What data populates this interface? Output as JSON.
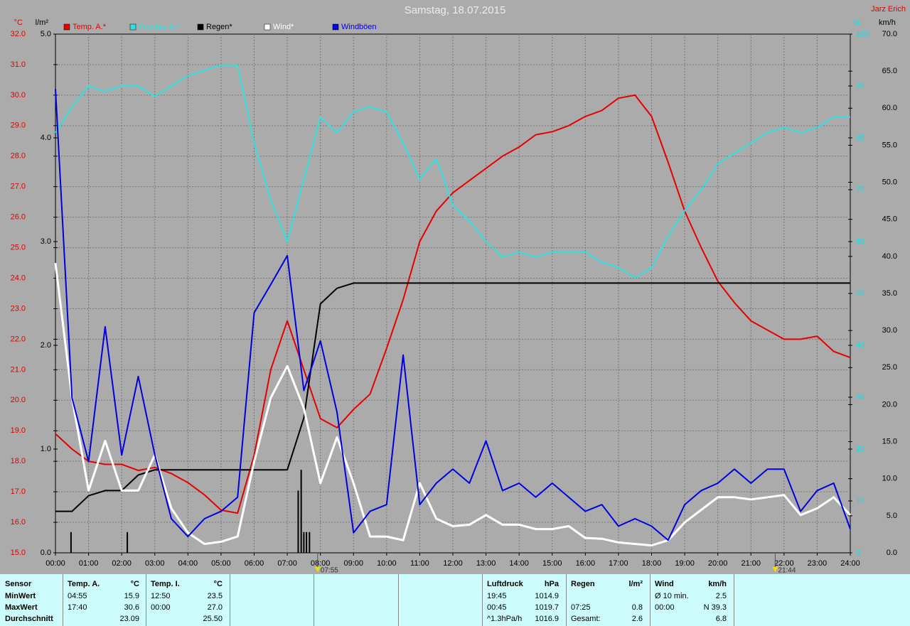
{
  "chart_data": {
    "type": "line",
    "title": "Samstag, 18.07.2015",
    "author": "Jarz Erich",
    "x": [
      0,
      0.5,
      1,
      1.5,
      2,
      2.5,
      3,
      3.5,
      4,
      4.5,
      5,
      5.5,
      6,
      6.5,
      7,
      7.5,
      8,
      8.5,
      9,
      9.5,
      10,
      10.5,
      11,
      11.5,
      12,
      12.5,
      13,
      13.5,
      14,
      14.5,
      15,
      15.5,
      16,
      16.5,
      17,
      17.5,
      18,
      18.5,
      19,
      19.5,
      20,
      20.5,
      21,
      21.5,
      22,
      22.5,
      23,
      23.5,
      24
    ],
    "xlim": [
      0,
      24
    ],
    "xticks": [
      {
        "value": 0,
        "label": "00:00"
      },
      {
        "value": 1,
        "label": "01:00"
      },
      {
        "value": 2,
        "label": "02:00"
      },
      {
        "value": 3,
        "label": "03:00"
      },
      {
        "value": 4,
        "label": "04:00"
      },
      {
        "value": 5,
        "label": "05:00"
      },
      {
        "value": 6,
        "label": "06:00"
      },
      {
        "value": 7,
        "label": "07:00"
      },
      {
        "value": 8,
        "label": "08:00"
      },
      {
        "value": 9,
        "label": "09:00"
      },
      {
        "value": 10,
        "label": "10:00"
      },
      {
        "value": 11,
        "label": "11:00"
      },
      {
        "value": 12,
        "label": "12:00"
      },
      {
        "value": 13,
        "label": "13:00"
      },
      {
        "value": 14,
        "label": "14:00"
      },
      {
        "value": 15,
        "label": "15:00"
      },
      {
        "value": 16,
        "label": "16:00"
      },
      {
        "value": 17,
        "label": "17:00"
      },
      {
        "value": 18,
        "label": "18:00"
      },
      {
        "value": 19,
        "label": "19:00"
      },
      {
        "value": 20,
        "label": "20:00"
      },
      {
        "value": 21,
        "label": "21:00"
      },
      {
        "value": 22,
        "label": "22:00"
      },
      {
        "value": 23,
        "label": "23:00"
      },
      {
        "value": 24,
        "label": "24:00"
      }
    ],
    "ylabel": "°C",
    "ylim": [
      15,
      32
    ],
    "yticks": [
      {
        "value": 15,
        "label": "15.0"
      },
      {
        "value": 16,
        "label": "16.0"
      },
      {
        "value": 17,
        "label": "17.0"
      },
      {
        "value": 18,
        "label": "18.0"
      },
      {
        "value": 19,
        "label": "19.0"
      },
      {
        "value": 20,
        "label": "20.0"
      },
      {
        "value": 21,
        "label": "21.0"
      },
      {
        "value": 22,
        "label": "22.0"
      },
      {
        "value": 23,
        "label": "23.0"
      },
      {
        "value": 24,
        "label": "24.0"
      },
      {
        "value": 25,
        "label": "25.0"
      },
      {
        "value": 26,
        "label": "26.0"
      },
      {
        "value": 27,
        "label": "27.0"
      },
      {
        "value": 28,
        "label": "28.0"
      },
      {
        "value": 29,
        "label": "29.0"
      },
      {
        "value": 30,
        "label": "30.0"
      },
      {
        "value": 31,
        "label": "31.0"
      },
      {
        "value": 32,
        "label": "32.0"
      }
    ],
    "y2label": "l/m²",
    "y2lim": [
      0,
      5
    ],
    "y2ticks": [
      {
        "value": 0,
        "label": "0.0"
      },
      {
        "value": 1,
        "label": "1.0"
      },
      {
        "value": 2,
        "label": "2.0"
      },
      {
        "value": 3,
        "label": "3.0"
      },
      {
        "value": 4,
        "label": "4.0"
      },
      {
        "value": 5,
        "label": "5.0"
      }
    ],
    "y3label": "%",
    "y3lim": [
      0,
      100
    ],
    "y3ticks": [
      0,
      10,
      20,
      30,
      40,
      50,
      60,
      70,
      80,
      90,
      100
    ],
    "y4label": "km/h",
    "y4lim": [
      0,
      70
    ],
    "y4ticks": [
      {
        "value": 0,
        "label": "0.0"
      },
      {
        "value": 5,
        "label": "5.0"
      },
      {
        "value": 10,
        "label": "10.0"
      },
      {
        "value": 15,
        "label": "15.0"
      },
      {
        "value": 20,
        "label": "20.0"
      },
      {
        "value": 25,
        "label": "25.0"
      },
      {
        "value": 30,
        "label": "30.0"
      },
      {
        "value": 35,
        "label": "35.0"
      },
      {
        "value": 40,
        "label": "40.0"
      },
      {
        "value": 45,
        "label": "45.0"
      },
      {
        "value": 50,
        "label": "50.0"
      },
      {
        "value": 55,
        "label": "55.0"
      },
      {
        "value": 60,
        "label": "60.0"
      },
      {
        "value": 65,
        "label": "65.0"
      },
      {
        "value": 70,
        "label": "70.0"
      }
    ],
    "axis_colors": {
      "y": "#e00000",
      "y2": "#000000",
      "y3": "#00e8e8",
      "y4": "#000000"
    },
    "grid": true,
    "series": [
      {
        "name": "Temp. A.*",
        "color": "#e80000",
        "axis": "y",
        "values": [
          18.9,
          18.4,
          18.0,
          17.9,
          17.9,
          17.7,
          17.8,
          17.6,
          17.3,
          16.9,
          16.4,
          16.3,
          18.2,
          21.0,
          22.6,
          21.0,
          19.4,
          19.1,
          19.7,
          20.2,
          21.7,
          23.3,
          25.2,
          26.2,
          26.8,
          27.2,
          27.6,
          28.0,
          28.3,
          28.7,
          28.8,
          29.0,
          29.3,
          29.5,
          29.9,
          30.0,
          29.3,
          27.8,
          26.2,
          25.0,
          23.9,
          23.2,
          22.6,
          22.3,
          22.0,
          22.0,
          22.1,
          21.6,
          21.4
        ]
      },
      {
        "name": "Feuchte A.*",
        "color": "#30e0e0",
        "axis": "y3",
        "values": [
          81,
          86,
          90,
          89,
          90,
          90,
          88,
          90,
          92,
          93,
          94,
          94,
          79,
          68,
          60,
          72,
          84,
          81,
          85,
          86,
          85,
          79,
          72,
          76,
          67,
          64,
          60,
          57,
          58,
          57,
          58,
          58,
          58,
          56,
          55,
          53,
          55,
          61,
          66,
          70,
          75,
          77,
          79,
          81,
          82,
          81,
          82,
          84,
          84
        ]
      },
      {
        "name": "Regen*",
        "color": "#000000",
        "axis": "y2",
        "values": [
          0.4,
          0.4,
          0.55,
          0.6,
          0.6,
          0.75,
          0.8,
          0.8,
          0.8,
          0.8,
          0.8,
          0.8,
          0.8,
          0.8,
          0.8,
          1.3,
          2.4,
          2.55,
          2.6,
          2.6,
          2.6,
          2.6,
          2.6,
          2.6,
          2.6,
          2.6,
          2.6,
          2.6,
          2.6,
          2.6,
          2.6,
          2.6,
          2.6,
          2.6,
          2.6,
          2.6,
          2.6,
          2.6,
          2.6,
          2.6,
          2.6,
          2.6,
          2.6,
          2.6,
          2.6,
          2.6,
          2.6,
          2.6,
          2.6
        ]
      },
      {
        "name": "Wind*",
        "color": "#ffffff",
        "axis": "y4",
        "values": [
          39.1,
          20.9,
          8.4,
          15.1,
          8.4,
          8.4,
          13.2,
          6.0,
          2.7,
          1.2,
          1.5,
          2.2,
          12.3,
          20.9,
          25.2,
          19.5,
          9.4,
          15.6,
          9.4,
          2.2,
          2.2,
          1.7,
          9.4,
          4.6,
          3.6,
          3.8,
          5.1,
          3.8,
          3.8,
          3.2,
          3.2,
          3.6,
          2.0,
          1.9,
          1.4,
          1.2,
          1.0,
          1.7,
          4.1,
          5.8,
          7.5,
          7.5,
          7.2,
          7.5,
          7.8,
          5.1,
          6.0,
          7.5,
          5.1
        ]
      },
      {
        "name": "Windböen",
        "color": "#0000e0",
        "axis": "y4",
        "values": [
          62.6,
          20.9,
          12.3,
          30.5,
          13.2,
          23.8,
          13.2,
          4.6,
          2.2,
          4.6,
          5.6,
          7.5,
          32.4,
          36.2,
          40.1,
          21.9,
          28.6,
          19.0,
          2.7,
          5.6,
          6.5,
          26.7,
          6.5,
          9.4,
          11.3,
          9.4,
          15.1,
          8.4,
          9.4,
          7.5,
          9.4,
          7.5,
          5.6,
          6.5,
          3.6,
          4.6,
          3.6,
          1.7,
          6.5,
          8.4,
          9.4,
          11.3,
          9.4,
          11.3,
          11.3,
          5.6,
          8.4,
          9.4,
          3.2
        ]
      }
    ],
    "rain_bars": {
      "axis": "y2",
      "color": "#000000",
      "x": [
        0.47,
        2.17,
        7.33,
        7.42,
        7.5,
        7.58,
        7.67
      ],
      "values": [
        0.2,
        0.2,
        0.6,
        0.8,
        0.2,
        0.2,
        0.2
      ]
    },
    "annotations": [
      {
        "x": 7.917,
        "label": "07:55"
      },
      {
        "x": 21.733,
        "label": "21:44"
      }
    ]
  },
  "table": {
    "row_labels": [
      "Sensor",
      "MinWert",
      "MaxWert",
      "Durchschnitt"
    ],
    "panels": [
      {
        "title": "Temp. A.",
        "unit": "°C",
        "rows": [
          {
            "time": "04:55",
            "value": "15.9"
          },
          {
            "time": "17:40",
            "value": "30.6"
          },
          {
            "value": "23.09"
          }
        ]
      },
      {
        "title": "Temp. I.",
        "unit": "°C",
        "rows": [
          {
            "time": "12:50",
            "value": "23.5"
          },
          {
            "time": "00:00",
            "value": "27.0"
          },
          {
            "value": "25.50"
          }
        ]
      },
      {
        "title": "Luftdruck",
        "unit": "hPa",
        "rows": [
          {
            "time": "19:45",
            "value": "1014.9"
          },
          {
            "time": "00:45",
            "value": "1019.7"
          },
          {
            "time": "^1.3hPa/h",
            "value": "1016.9"
          }
        ]
      },
      {
        "title": "Regen",
        "unit": "l/m²",
        "rows": [
          null,
          {
            "time": "07:25",
            "value": "0.8"
          },
          {
            "time": "Gesamt:",
            "value": "2.6"
          }
        ]
      },
      {
        "title": "Wind",
        "unit": "km/h",
        "rows": [
          {
            "time": "Ø 10 min.",
            "value": "2.5"
          },
          {
            "time": "00:00",
            "value": "N 39.3"
          },
          {
            "value": "6.8"
          }
        ]
      }
    ]
  }
}
